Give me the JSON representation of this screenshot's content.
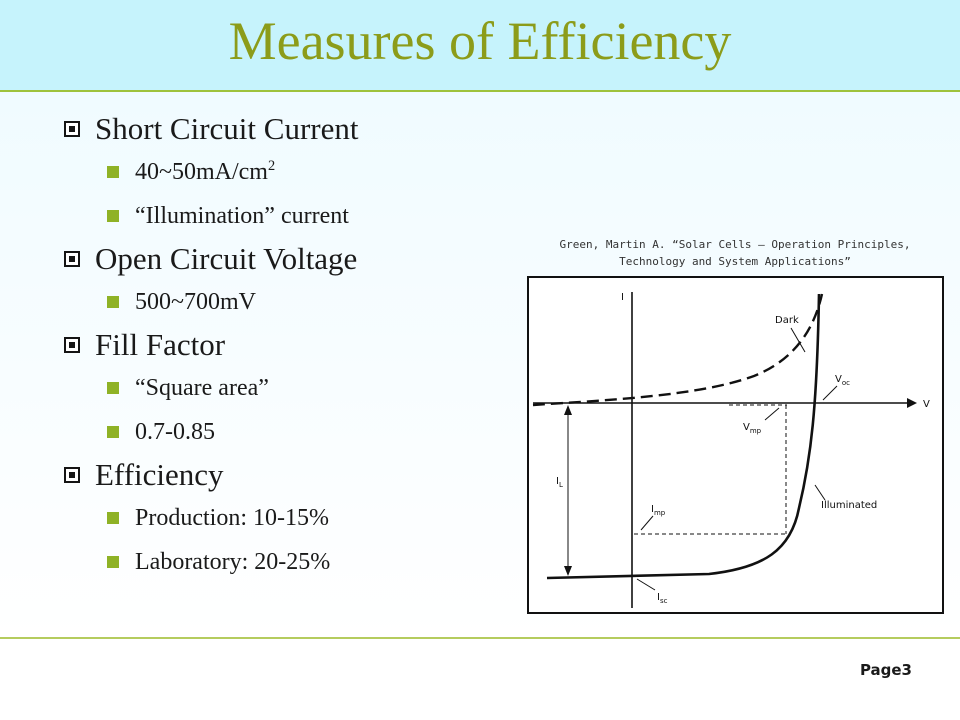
{
  "slide": {
    "title": "Measures of Efficiency",
    "page": "Page3"
  },
  "bullets": [
    {
      "label": "Short Circuit Current",
      "items": [
        {
          "text": "40~50mA/cm",
          "sup": "2"
        },
        {
          "text": "“Illumination” current"
        }
      ]
    },
    {
      "label": "Open Circuit Voltage",
      "items": [
        {
          "text": "500~700mV"
        }
      ]
    },
    {
      "label": "Fill Factor",
      "items": [
        {
          "text": "“Square area”"
        },
        {
          "text": "0.7-0.85"
        }
      ]
    },
    {
      "label": "Efficiency",
      "items": [
        {
          "text": "Production: 10-15%"
        },
        {
          "text": "Laboratory: 20-25%"
        }
      ]
    }
  ],
  "citation": {
    "line1": "Green, Martin A. “Solar Cells – Operation Principles,",
    "line2": "Technology and System Applications”"
  },
  "figure": {
    "axis_y_label": "I",
    "axis_x_label": "V",
    "dark_label": "Dark",
    "voc_label": "V",
    "voc_sub": "oc",
    "vmp_label": "V",
    "vmp_sub": "mp",
    "il_label": "I",
    "il_sub": "L",
    "imp_label": "I",
    "imp_sub": "mp",
    "illuminated_label": "Illuminated",
    "isc_label": "I",
    "isc_sub": "sc"
  }
}
